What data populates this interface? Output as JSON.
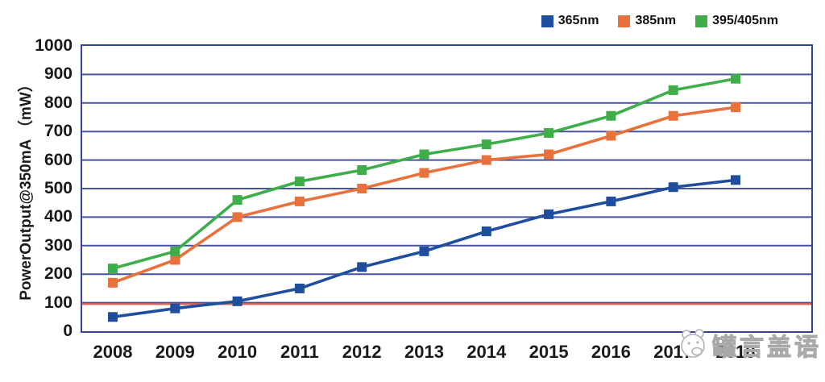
{
  "chart_data": {
    "type": "line",
    "title": "",
    "ylabel": "PowerOutput@350mA （mW）",
    "xlabel": "",
    "categories": [
      "2008",
      "2009",
      "2010",
      "2011",
      "2012",
      "2013",
      "2014",
      "2015",
      "2016",
      "2017",
      "2018"
    ],
    "ylim": [
      0,
      1000
    ],
    "ytick_labels": [
      "0",
      "100",
      "200",
      "300",
      "400",
      "500",
      "600",
      "700",
      "800",
      "900",
      "1000"
    ],
    "grid": "horizontal",
    "legend_position": "top-right",
    "marker": "square",
    "series": [
      {
        "name": "365nm",
        "color": "#1F4E9E",
        "values": [
          50,
          80,
          105,
          150,
          225,
          280,
          350,
          410,
          455,
          505,
          530
        ]
      },
      {
        "name": "385nm",
        "color": "#E8713C",
        "values": [
          170,
          250,
          400,
          455,
          500,
          555,
          600,
          620,
          685,
          755,
          785
        ]
      },
      {
        "name": "395/405nm",
        "color": "#3FAE4A",
        "values": [
          220,
          280,
          460,
          525,
          565,
          620,
          655,
          695,
          755,
          845,
          885
        ]
      }
    ],
    "reference_line": {
      "value": 95,
      "color": "#E26952"
    },
    "colors": {
      "gridline": "#4553A0",
      "border": "#35429A",
      "tick_text": "#1A1A1A"
    }
  },
  "watermark": {
    "text": "罐言盖语",
    "icon": "cartoon-face"
  }
}
